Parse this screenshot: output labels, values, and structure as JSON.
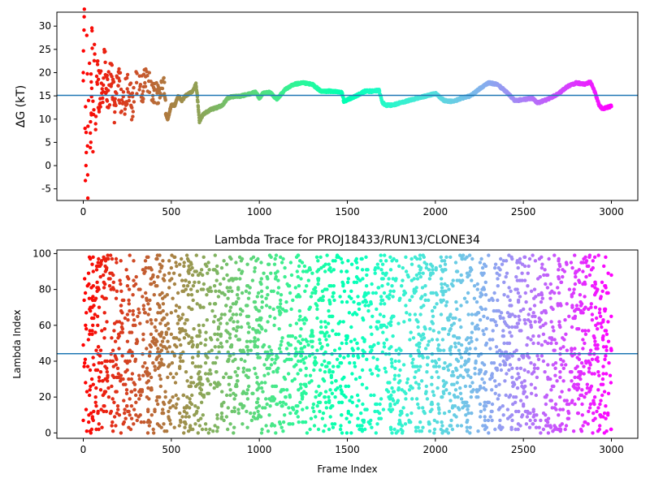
{
  "chart_data": [
    {
      "type": "scatter",
      "title": "",
      "xlabel": "",
      "ylabel": "ΔG (kT)",
      "xlim": [
        -150,
        3150
      ],
      "ylim": [
        -7.5,
        33
      ],
      "xticks": [
        0,
        500,
        1000,
        1500,
        2000,
        2500,
        3000
      ],
      "yticks": [
        -5,
        0,
        5,
        10,
        15,
        20,
        25,
        30
      ],
      "colormap": "rainbow (color by frame index, red at 0 to purple at 3000)",
      "reference_line": {
        "y": 15.1,
        "color": "#1f77b4"
      },
      "x_range": [
        0,
        3000
      ],
      "series": [
        {
          "points_sampled_trend": [
            [
              0,
              20
            ],
            [
              5,
              32
            ],
            [
              10,
              8
            ],
            [
              15,
              0
            ],
            [
              20,
              28
            ],
            [
              25,
              -2
            ],
            [
              30,
              14
            ],
            [
              35,
              22
            ],
            [
              40,
              7
            ],
            [
              45,
              18
            ],
            [
              50,
              29
            ],
            [
              55,
              3
            ],
            [
              60,
              12
            ],
            [
              65,
              24
            ],
            [
              70,
              9
            ],
            [
              80,
              20
            ],
            [
              90,
              14
            ],
            [
              100,
              17
            ],
            [
              110,
              11
            ],
            [
              120,
              21
            ],
            [
              140,
              15
            ],
            [
              160,
              19
            ],
            [
              180,
              12
            ],
            [
              200,
              18
            ],
            [
              220,
              14
            ],
            [
              250,
              16
            ],
            [
              280,
              13
            ],
            [
              300,
              18
            ],
            [
              330,
              16
            ],
            [
              360,
              19
            ],
            [
              400,
              15
            ],
            [
              430,
              16
            ],
            [
              460,
              17
            ],
            [
              470,
              11
            ],
            [
              480,
              10
            ],
            [
              500,
              13
            ],
            [
              520,
              13
            ],
            [
              540,
              15
            ],
            [
              560,
              14
            ],
            [
              580,
              15
            ],
            [
              600,
              15.5
            ],
            [
              620,
              16
            ],
            [
              640,
              17.5
            ],
            [
              650,
              14
            ],
            [
              660,
              9.5
            ],
            [
              680,
              11
            ],
            [
              700,
              11.5
            ],
            [
              720,
              12
            ],
            [
              760,
              12.5
            ],
            [
              790,
              13
            ],
            [
              820,
              14.5
            ],
            [
              840,
              14.8
            ],
            [
              900,
              15
            ],
            [
              950,
              15.5
            ],
            [
              980,
              15.8
            ],
            [
              1000,
              14.5
            ],
            [
              1020,
              15.5
            ],
            [
              1060,
              15.8
            ],
            [
              1080,
              15
            ],
            [
              1100,
              14.3
            ],
            [
              1150,
              16.5
            ],
            [
              1200,
              17.5
            ],
            [
              1250,
              17.8
            ],
            [
              1300,
              17.5
            ],
            [
              1350,
              16
            ],
            [
              1400,
              16
            ],
            [
              1450,
              15.8
            ],
            [
              1470,
              15.7
            ],
            [
              1480,
              13.8
            ],
            [
              1520,
              14.5
            ],
            [
              1550,
              15
            ],
            [
              1600,
              16
            ],
            [
              1650,
              16
            ],
            [
              1680,
              16.2
            ],
            [
              1700,
              13.5
            ],
            [
              1720,
              13
            ],
            [
              1760,
              13
            ],
            [
              1800,
              13.5
            ],
            [
              1850,
              14
            ],
            [
              1900,
              14.5
            ],
            [
              1950,
              15
            ],
            [
              2000,
              15.5
            ],
            [
              2050,
              14
            ],
            [
              2100,
              13.8
            ],
            [
              2150,
              14.5
            ],
            [
              2200,
              15
            ],
            [
              2250,
              16.5
            ],
            [
              2300,
              17.8
            ],
            [
              2350,
              17.5
            ],
            [
              2400,
              16
            ],
            [
              2450,
              14
            ],
            [
              2500,
              14.2
            ],
            [
              2550,
              14.5
            ],
            [
              2580,
              13.5
            ],
            [
              2620,
              14
            ],
            [
              2650,
              14.5
            ],
            [
              2700,
              15.5
            ],
            [
              2750,
              17
            ],
            [
              2800,
              17.8
            ],
            [
              2850,
              17.5
            ],
            [
              2880,
              18
            ],
            [
              2900,
              16.5
            ],
            [
              2930,
              13
            ],
            [
              2950,
              12.2
            ],
            [
              3000,
              12.8
            ]
          ]
        }
      ]
    },
    {
      "type": "scatter",
      "title": "Lambda Trace for PROJ18433/RUN13/CLONE34",
      "xlabel": "Frame Index",
      "ylabel": "Lambda Index",
      "xlim": [
        -150,
        3150
      ],
      "ylim": [
        -3,
        102
      ],
      "xticks": [
        0,
        500,
        1000,
        1500,
        2000,
        2500,
        3000
      ],
      "yticks": [
        0,
        20,
        40,
        60,
        80,
        100
      ],
      "colormap": "rainbow (color by frame index, red at 0 to purple at 3000)",
      "reference_line": {
        "y": 44.2,
        "color": "#1f77b4"
      },
      "x_range": [
        0,
        3000
      ],
      "y_range": [
        0,
        99
      ],
      "description_values": "Points scattered uniformly across lambda index 0 to 99 for frames 0 to 3000"
    }
  ]
}
